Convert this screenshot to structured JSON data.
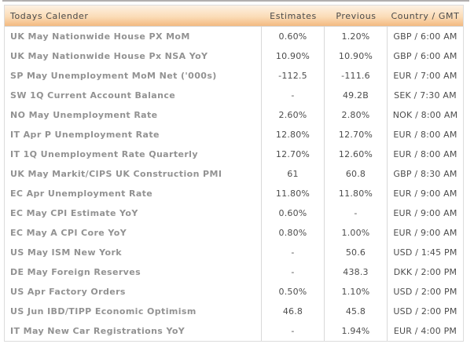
{
  "colors": {
    "top_strip": "#b1aeae",
    "header_grad_top": "#fdf1e2",
    "header_grad_mid": "#fbdcb7",
    "header_grad_bottom": "#f3b981",
    "header_border_bottom": "#d5d2ce",
    "header_text": "#4a4a4a",
    "grid_line": "#d9d9d9",
    "outer_border": "#dcdcdc",
    "row_name_text": "#929292",
    "row_value_text": "#4d4d4d"
  },
  "table": {
    "header": {
      "title": "Todays Calender",
      "estimates": "Estimates",
      "previous": "Previous",
      "country": "Country / GMT"
    },
    "rows": [
      {
        "name": "UK May Nationwide House PX MoM",
        "estimate": "0.60%",
        "previous": "1.20%",
        "country": "GBP / 6:00 AM"
      },
      {
        "name": "UK May Nationwide House Px NSA YoY",
        "estimate": "10.90%",
        "previous": "10.90%",
        "country": "GBP / 6:00 AM"
      },
      {
        "name": "SP May Unemployment MoM Net ('000s)",
        "estimate": "-112.5",
        "previous": "-111.6",
        "country": "EUR / 7:00 AM"
      },
      {
        "name": "SW 1Q Current Account Balance",
        "estimate": "-",
        "previous": "49.2B",
        "country": "SEK / 7:30 AM"
      },
      {
        "name": "NO May Unemployment Rate",
        "estimate": "2.60%",
        "previous": "2.80%",
        "country": "NOK / 8:00 AM"
      },
      {
        "name": "IT Apr P Unemployment Rate",
        "estimate": "12.80%",
        "previous": "12.70%",
        "country": "EUR / 8:00 AM"
      },
      {
        "name": "IT 1Q Unemployment Rate Quarterly",
        "estimate": "12.70%",
        "previous": "12.60%",
        "country": "EUR / 8:00 AM"
      },
      {
        "name": "UK May Markit/CIPS UK Construction PMI",
        "estimate": "61",
        "previous": "60.8",
        "country": "GBP / 8:30 AM"
      },
      {
        "name": "EC Apr Unemployment Rate",
        "estimate": "11.80%",
        "previous": "11.80%",
        "country": "EUR / 9:00 AM"
      },
      {
        "name": "EC May CPI Estimate YoY",
        "estimate": "0.60%",
        "previous": "-",
        "country": "EUR / 9:00 AM"
      },
      {
        "name": "EC May A CPI Core YoY",
        "estimate": "0.80%",
        "previous": "1.00%",
        "country": "EUR / 9:00 AM"
      },
      {
        "name": "US May ISM New York",
        "estimate": "-",
        "previous": "50.6",
        "country": "USD / 1:45 PM"
      },
      {
        "name": "DE May Foreign Reserves",
        "estimate": "-",
        "previous": "438.3",
        "country": "DKK / 2:00 PM"
      },
      {
        "name": "US Apr Factory Orders",
        "estimate": "0.50%",
        "previous": "1.10%",
        "country": "USD / 2:00 PM"
      },
      {
        "name": "US Jun IBD/TIPP Economic Optimism",
        "estimate": "46.8",
        "previous": "45.8",
        "country": "USD / 2:00 PM"
      },
      {
        "name": "IT May New Car Registrations YoY",
        "estimate": "-",
        "previous": "1.94%",
        "country": "EUR / 4:00 PM"
      }
    ]
  }
}
